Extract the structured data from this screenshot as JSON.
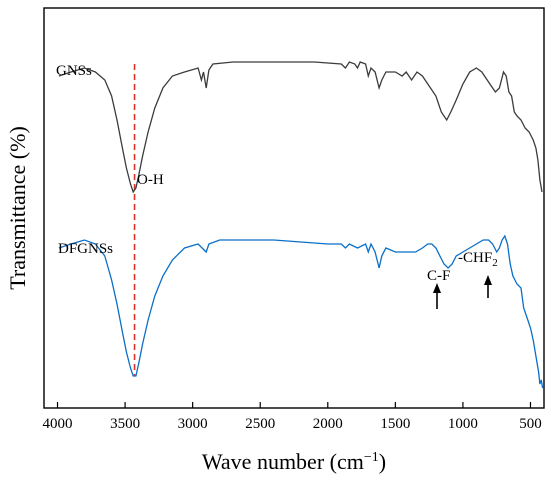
{
  "chart_data": {
    "type": "line",
    "title": "",
    "xlabel": "Wave number (cm",
    "xlabel_sup": "−1",
    "xlabel_close": ")",
    "ylabel": "Transmittance (%)",
    "xlim": [
      4100,
      400
    ],
    "x_reversed": true,
    "xticks": [
      4000,
      3500,
      3000,
      2500,
      2000,
      1500,
      1000,
      500
    ],
    "xtick_labels": [
      "4000",
      "3500",
      "3000",
      "2500",
      "2000",
      "1500",
      "1000",
      "500"
    ],
    "ylim": [
      0,
      1
    ],
    "y_tick_labels_shown": false,
    "grid": false,
    "legend": "none",
    "series": [
      {
        "name": "GNSs",
        "color": "#3c3c3c",
        "points": [
          [
            3990,
            0.83
          ],
          [
            3900,
            0.84
          ],
          [
            3800,
            0.85
          ],
          [
            3720,
            0.84
          ],
          [
            3650,
            0.82
          ],
          [
            3600,
            0.78
          ],
          [
            3560,
            0.72
          ],
          [
            3520,
            0.65
          ],
          [
            3490,
            0.6
          ],
          [
            3460,
            0.56
          ],
          [
            3440,
            0.54
          ],
          [
            3420,
            0.55
          ],
          [
            3400,
            0.58
          ],
          [
            3370,
            0.63
          ],
          [
            3330,
            0.69
          ],
          [
            3280,
            0.75
          ],
          [
            3220,
            0.8
          ],
          [
            3150,
            0.83
          ],
          [
            3060,
            0.84
          ],
          [
            2960,
            0.85
          ],
          [
            2935,
            0.82
          ],
          [
            2920,
            0.84
          ],
          [
            2900,
            0.8
          ],
          [
            2880,
            0.845
          ],
          [
            2850,
            0.86
          ],
          [
            2700,
            0.865
          ],
          [
            2500,
            0.865
          ],
          [
            2300,
            0.865
          ],
          [
            2100,
            0.865
          ],
          [
            1900,
            0.86
          ],
          [
            1870,
            0.85
          ],
          [
            1840,
            0.865
          ],
          [
            1800,
            0.86
          ],
          [
            1780,
            0.85
          ],
          [
            1760,
            0.865
          ],
          [
            1720,
            0.86
          ],
          [
            1700,
            0.83
          ],
          [
            1680,
            0.85
          ],
          [
            1650,
            0.84
          ],
          [
            1620,
            0.8
          ],
          [
            1600,
            0.82
          ],
          [
            1570,
            0.84
          ],
          [
            1500,
            0.84
          ],
          [
            1450,
            0.83
          ],
          [
            1420,
            0.84
          ],
          [
            1380,
            0.82
          ],
          [
            1340,
            0.84
          ],
          [
            1300,
            0.83
          ],
          [
            1240,
            0.8
          ],
          [
            1200,
            0.78
          ],
          [
            1160,
            0.74
          ],
          [
            1120,
            0.72
          ],
          [
            1090,
            0.74
          ],
          [
            1050,
            0.77
          ],
          [
            1000,
            0.81
          ],
          [
            950,
            0.84
          ],
          [
            900,
            0.85
          ],
          [
            860,
            0.84
          ],
          [
            800,
            0.81
          ],
          [
            760,
            0.79
          ],
          [
            730,
            0.8
          ],
          [
            700,
            0.84
          ],
          [
            680,
            0.83
          ],
          [
            660,
            0.79
          ],
          [
            640,
            0.78
          ],
          [
            620,
            0.74
          ],
          [
            600,
            0.73
          ],
          [
            570,
            0.72
          ],
          [
            540,
            0.7
          ],
          [
            510,
            0.69
          ],
          [
            480,
            0.67
          ],
          [
            460,
            0.65
          ],
          [
            445,
            0.62
          ],
          [
            430,
            0.57
          ],
          [
            415,
            0.54
          ]
        ]
      },
      {
        "name": "DFGNSs",
        "color": "#0a6fc8",
        "points": [
          [
            3990,
            0.4
          ],
          [
            3900,
            0.41
          ],
          [
            3800,
            0.42
          ],
          [
            3720,
            0.41
          ],
          [
            3650,
            0.38
          ],
          [
            3600,
            0.32
          ],
          [
            3560,
            0.26
          ],
          [
            3520,
            0.19
          ],
          [
            3490,
            0.14
          ],
          [
            3460,
            0.1
          ],
          [
            3440,
            0.08
          ],
          [
            3420,
            0.08
          ],
          [
            3400,
            0.11
          ],
          [
            3370,
            0.16
          ],
          [
            3330,
            0.22
          ],
          [
            3280,
            0.28
          ],
          [
            3220,
            0.33
          ],
          [
            3150,
            0.37
          ],
          [
            3060,
            0.4
          ],
          [
            2960,
            0.41
          ],
          [
            2900,
            0.39
          ],
          [
            2880,
            0.41
          ],
          [
            2800,
            0.42
          ],
          [
            2600,
            0.42
          ],
          [
            2400,
            0.42
          ],
          [
            2200,
            0.415
          ],
          [
            2000,
            0.41
          ],
          [
            1900,
            0.41
          ],
          [
            1870,
            0.4
          ],
          [
            1840,
            0.41
          ],
          [
            1780,
            0.4
          ],
          [
            1720,
            0.41
          ],
          [
            1700,
            0.39
          ],
          [
            1680,
            0.41
          ],
          [
            1650,
            0.39
          ],
          [
            1620,
            0.35
          ],
          [
            1600,
            0.38
          ],
          [
            1570,
            0.4
          ],
          [
            1500,
            0.39
          ],
          [
            1450,
            0.39
          ],
          [
            1400,
            0.39
          ],
          [
            1350,
            0.39
          ],
          [
            1300,
            0.4
          ],
          [
            1260,
            0.41
          ],
          [
            1230,
            0.41
          ],
          [
            1200,
            0.4
          ],
          [
            1170,
            0.38
          ],
          [
            1140,
            0.36
          ],
          [
            1110,
            0.35
          ],
          [
            1080,
            0.36
          ],
          [
            1050,
            0.38
          ],
          [
            1000,
            0.39
          ],
          [
            950,
            0.4
          ],
          [
            900,
            0.41
          ],
          [
            850,
            0.42
          ],
          [
            810,
            0.42
          ],
          [
            780,
            0.41
          ],
          [
            750,
            0.39
          ],
          [
            730,
            0.4
          ],
          [
            710,
            0.42
          ],
          [
            690,
            0.43
          ],
          [
            670,
            0.41
          ],
          [
            650,
            0.36
          ],
          [
            630,
            0.33
          ],
          [
            600,
            0.31
          ],
          [
            570,
            0.3
          ],
          [
            550,
            0.25
          ],
          [
            520,
            0.22
          ],
          [
            500,
            0.2
          ],
          [
            480,
            0.17
          ],
          [
            460,
            0.13
          ],
          [
            440,
            0.09
          ],
          [
            430,
            0.06
          ],
          [
            420,
            0.07
          ],
          [
            410,
            0.05
          ]
        ]
      }
    ],
    "annotations": {
      "gnss_label": "GNSs",
      "dfgnss_label": "DFGNSs",
      "oh_label": "O-H",
      "cf_label": "C-F",
      "chf_label": "-CHF",
      "chf_sub": "2"
    },
    "reference_line": {
      "x": 3430,
      "style": "dashed",
      "color": "#e0302a"
    }
  }
}
